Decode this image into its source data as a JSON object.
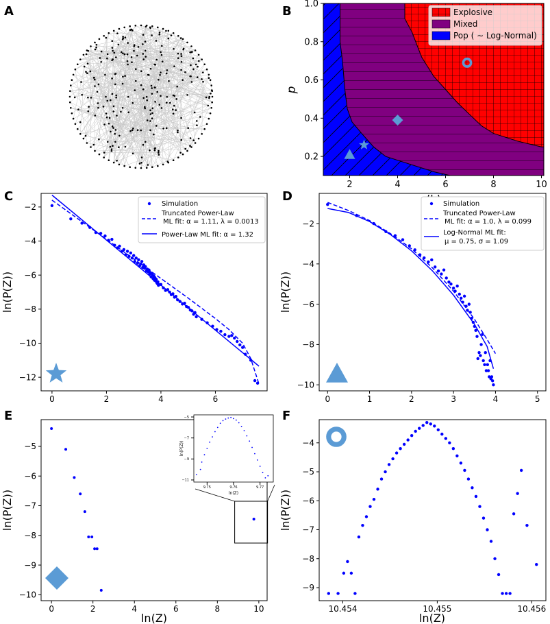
{
  "figure": {
    "panel_letters": [
      "A",
      "B",
      "C",
      "D",
      "E",
      "F"
    ]
  },
  "chart_data": [
    {
      "panel": "A",
      "type": "network",
      "title": "",
      "description_nodes": "random graph drawn in circular layout"
    },
    {
      "panel": "B",
      "type": "phase_diagram",
      "xlabel": "⟨k⟩",
      "ylabel": "p",
      "xlim": [
        0.9,
        10.1
      ],
      "ylim": [
        0.1,
        1.0
      ],
      "xticks": [
        2,
        4,
        6,
        8,
        10
      ],
      "yticks": [
        0.2,
        0.4,
        0.6,
        0.8,
        1.0
      ],
      "legend": [
        "Explosive",
        "Mixed",
        "Pop ( ∼  Log-Normal)"
      ],
      "colors": {
        "explosive": "#ff0000",
        "mixed": "#800080",
        "pop": "#0000ff"
      },
      "boundary_explosive_mixed": [
        [
          4.3,
          1.0
        ],
        [
          4.3,
          0.92
        ],
        [
          4.6,
          0.85
        ],
        [
          5.0,
          0.72
        ],
        [
          5.5,
          0.62
        ],
        [
          6.0,
          0.55
        ],
        [
          6.5,
          0.48
        ],
        [
          7.0,
          0.42
        ],
        [
          7.5,
          0.36
        ],
        [
          8.0,
          0.32
        ],
        [
          9.0,
          0.28
        ],
        [
          10.0,
          0.25
        ]
      ],
      "boundary_mixed_pop": [
        [
          1.6,
          0.8
        ],
        [
          1.7,
          0.7
        ],
        [
          1.8,
          0.55
        ],
        [
          1.9,
          0.45
        ],
        [
          2.1,
          0.38
        ],
        [
          2.5,
          0.32
        ],
        [
          3.0,
          0.25
        ],
        [
          3.5,
          0.2
        ],
        [
          4.5,
          0.16
        ],
        [
          5.5,
          0.12
        ],
        [
          6.2,
          0.1
        ]
      ],
      "markers": [
        {
          "shape": "ring",
          "k": 6.9,
          "p": 0.69
        },
        {
          "shape": "diamond",
          "k": 4.0,
          "p": 0.39
        },
        {
          "shape": "star",
          "k": 2.6,
          "p": 0.26
        },
        {
          "shape": "triangle",
          "k": 2.0,
          "p": 0.21
        }
      ]
    },
    {
      "panel": "C",
      "type": "scatter",
      "xlabel": "",
      "ylabel": "ln(P(Z))",
      "xlim": [
        -0.4,
        7.9
      ],
      "ylim": [
        -12.8,
        -1.2
      ],
      "xticks": [
        0,
        2,
        4,
        6
      ],
      "yticks": [
        -12,
        -10,
        -8,
        -6,
        -4,
        -2
      ],
      "legend": [
        "Simulation",
        "Truncated Power-Law",
        "ML fit: α = 1.11, λ = 0.0013",
        "Power-Law ML fit: α = 1.32"
      ],
      "marker": "star",
      "simulation": {
        "x": [
          0.0,
          0.69,
          1.1,
          1.39,
          1.61,
          1.79,
          1.95,
          2.08,
          2.2,
          2.3,
          2.4,
          2.48,
          2.56,
          2.64,
          2.71,
          2.77,
          2.83,
          2.89,
          2.94,
          3.0,
          3.04,
          3.09,
          3.14,
          3.18,
          3.22,
          3.26,
          3.3,
          3.33,
          3.37,
          3.4,
          3.43,
          3.47,
          3.5,
          3.53,
          3.56,
          3.58,
          3.61,
          3.64,
          3.66,
          3.69,
          3.71,
          3.74,
          3.76,
          3.78,
          3.81,
          3.83,
          3.85,
          3.87,
          3.89,
          3.91,
          4.0,
          4.09,
          4.17,
          4.25,
          4.32,
          4.38,
          4.44,
          4.5,
          4.55,
          4.61,
          4.7,
          4.79,
          4.87,
          4.94,
          5.01,
          5.08,
          5.14,
          5.2,
          5.25,
          5.3,
          5.5,
          5.7,
          5.9,
          6.05,
          6.2,
          6.35,
          6.5,
          6.6,
          6.7,
          6.8,
          6.9,
          7.0,
          7.1,
          7.3,
          7.45,
          7.55
        ],
        "y": [
          -1.92,
          -2.7,
          -2.95,
          -3.2,
          -3.5,
          -3.55,
          -3.7,
          -3.95,
          -3.9,
          -4.25,
          -4.4,
          -4.3,
          -4.6,
          -4.5,
          -4.8,
          -4.6,
          -4.9,
          -4.7,
          -5.0,
          -4.85,
          -5.2,
          -5.0,
          -5.3,
          -5.1,
          -5.45,
          -5.35,
          -5.2,
          -5.55,
          -5.4,
          -5.6,
          -5.5,
          -5.75,
          -5.65,
          -5.8,
          -5.7,
          -5.95,
          -5.85,
          -6.1,
          -5.9,
          -6.0,
          -6.2,
          -6.05,
          -6.3,
          -6.15,
          -6.35,
          -6.25,
          -6.45,
          -6.5,
          -6.4,
          -6.6,
          -6.55,
          -6.75,
          -6.9,
          -6.85,
          -7.0,
          -7.15,
          -7.1,
          -7.3,
          -7.25,
          -7.45,
          -7.55,
          -7.7,
          -7.65,
          -7.85,
          -7.9,
          -8.05,
          -8.1,
          -8.3,
          -8.2,
          -8.45,
          -8.6,
          -8.8,
          -9.0,
          -9.2,
          -9.3,
          -9.5,
          -9.6,
          -9.55,
          -9.7,
          -9.9,
          -10.1,
          -10.25,
          -10.65,
          -11.0,
          -12.2,
          -12.35
        ]
      },
      "truncated_power_law": {
        "x": [
          0.0,
          1.0,
          2.0,
          3.0,
          4.0,
          5.0,
          6.0,
          6.5,
          7.0,
          7.3,
          7.6
        ],
        "y": [
          -1.6,
          -2.75,
          -3.9,
          -5.05,
          -6.2,
          -7.35,
          -8.55,
          -9.2,
          -10.0,
          -10.9,
          -12.4
        ]
      },
      "power_law": {
        "x": [
          0.0,
          7.6
        ],
        "y": [
          -1.3,
          -11.35
        ]
      }
    },
    {
      "panel": "D",
      "type": "scatter",
      "xlabel": "",
      "ylabel": "ln(P(Z))",
      "xlim": [
        -0.2,
        5.2
      ],
      "ylim": [
        -10.3,
        -0.5
      ],
      "xticks": [
        0,
        1,
        2,
        3,
        4,
        5
      ],
      "yticks": [
        -10,
        -8,
        -6,
        -4,
        -2
      ],
      "legend": [
        "Simulation",
        "Truncated Power-Law",
        "ML fit: α = 1.0, λ = 0.099",
        "Log-Normal  ML fit:",
        "μ = 0.75, σ = 1.09"
      ],
      "marker": "triangle",
      "simulation": {
        "x": [
          0.0,
          0.69,
          1.1,
          1.39,
          1.61,
          1.79,
          1.95,
          2.08,
          2.2,
          2.3,
          2.4,
          2.48,
          2.56,
          2.64,
          2.71,
          2.77,
          2.83,
          2.89,
          2.94,
          3.0,
          3.04,
          3.09,
          3.14,
          3.18,
          3.22,
          3.26,
          3.3,
          3.33,
          3.37,
          3.4,
          3.43,
          3.47,
          3.5,
          3.53,
          3.56,
          3.58,
          3.61,
          3.64,
          3.66,
          3.69,
          3.71,
          3.74,
          3.76,
          3.78,
          3.81,
          3.83,
          3.85,
          3.87,
          3.89,
          3.91,
          3.93,
          3.95
        ],
        "y": [
          -1.05,
          -1.6,
          -2.0,
          -2.4,
          -2.6,
          -2.8,
          -3.1,
          -3.3,
          -3.55,
          -3.7,
          -3.9,
          -3.8,
          -4.15,
          -4.35,
          -4.5,
          -4.3,
          -4.7,
          -4.9,
          -5.0,
          -5.2,
          -5.35,
          -5.1,
          -5.5,
          -5.7,
          -5.9,
          -5.6,
          -6.1,
          -6.3,
          -6.0,
          -6.4,
          -6.7,
          -6.9,
          -7.1,
          -7.3,
          -7.6,
          -8.7,
          -8.4,
          -8.55,
          -8.0,
          -7.5,
          -8.8,
          -9.0,
          -8.4,
          -9.3,
          -9.0,
          -9.3,
          -9.6,
          -8.8,
          -9.7,
          -9.6,
          -9.8,
          -10.0
        ]
      },
      "truncated_power_law": {
        "x": [
          0.0,
          0.5,
          1.0,
          1.5,
          2.0,
          2.5,
          3.0,
          3.5,
          3.8,
          4.0
        ],
        "y": [
          -0.95,
          -1.35,
          -1.85,
          -2.5,
          -3.25,
          -4.2,
          -5.35,
          -6.75,
          -7.75,
          -8.45
        ]
      },
      "log_normal": {
        "x": [
          0.0,
          0.5,
          1.0,
          1.5,
          2.0,
          2.5,
          3.0,
          3.5,
          3.8,
          3.95
        ],
        "y": [
          -1.25,
          -1.45,
          -1.9,
          -2.55,
          -3.35,
          -4.35,
          -5.55,
          -7.0,
          -8.1,
          -9.2
        ]
      }
    },
    {
      "panel": "E",
      "type": "scatter",
      "xlabel": "ln(Z)",
      "ylabel": "ln(P(Z))",
      "xlim": [
        -0.5,
        10.4
      ],
      "ylim": [
        -10.2,
        -4.1
      ],
      "xticks": [
        0,
        2,
        4,
        6,
        8,
        10
      ],
      "yticks": [
        -10,
        -9,
        -8,
        -7,
        -6,
        -5
      ],
      "marker": "diamond",
      "simulation": {
        "x": [
          0.0,
          0.69,
          1.1,
          1.39,
          1.61,
          1.79,
          1.95,
          2.08,
          2.2,
          2.4,
          9.76
        ],
        "y": [
          -4.4,
          -5.1,
          -6.05,
          -6.6,
          -7.2,
          -8.05,
          -8.05,
          -8.45,
          -8.45,
          -9.85,
          -7.45
        ]
      },
      "inset": {
        "xlabel": "ln(Z)",
        "ylabel": "ln(P(Z))",
        "xlim": [
          9.745,
          9.775
        ],
        "ylim": [
          -11.2,
          -4.8
        ],
        "xticks": [
          9.75,
          9.76,
          9.77
        ],
        "yticks": [
          -11,
          -9,
          -7,
          -5
        ],
        "x": [
          9.746,
          9.7475,
          9.748,
          9.749,
          9.75,
          9.751,
          9.752,
          9.753,
          9.754,
          9.755,
          9.756,
          9.757,
          9.758,
          9.759,
          9.76,
          9.761,
          9.762,
          9.763,
          9.764,
          9.765,
          9.766,
          9.767,
          9.768,
          9.769,
          9.77,
          9.771,
          9.772,
          9.773
        ],
        "y": [
          -10.5,
          -10.0,
          -9.3,
          -8.6,
          -8.0,
          -7.4,
          -6.9,
          -6.4,
          -6.0,
          -5.6,
          -5.35,
          -5.2,
          -5.1,
          -5.05,
          -5.15,
          -5.3,
          -5.55,
          -5.9,
          -6.3,
          -6.8,
          -7.3,
          -7.9,
          -8.5,
          -9.1,
          -9.7,
          -10.3,
          -10.8,
          -10.6
        ]
      }
    },
    {
      "panel": "F",
      "type": "scatter",
      "xlabel": "ln(Z)",
      "ylabel": "ln(P(Z))",
      "xlim": [
        10.45375,
        10.45615
      ],
      "ylim": [
        -9.45,
        -3.2
      ],
      "xticks": [
        10.454,
        10.455,
        10.456
      ],
      "yticks": [
        -9,
        -8,
        -7,
        -6,
        -5,
        -4
      ],
      "marker": "ring",
      "simulation": {
        "x": [
          10.45385,
          10.45395,
          10.45401,
          10.45405,
          10.45409,
          10.45413,
          10.45417,
          10.45421,
          10.45425,
          10.45429,
          10.45433,
          10.45437,
          10.45441,
          10.45445,
          10.45449,
          10.45453,
          10.45457,
          10.45461,
          10.45465,
          10.45469,
          10.45473,
          10.45477,
          10.45481,
          10.45485,
          10.45489,
          10.45493,
          10.45497,
          10.45501,
          10.45505,
          10.45509,
          10.45513,
          10.45517,
          10.45521,
          10.45525,
          10.45529,
          10.45533,
          10.45537,
          10.45541,
          10.45545,
          10.45549,
          10.45553,
          10.45557,
          10.45561,
          10.45565,
          10.45569,
          10.45573,
          10.45577,
          10.45581,
          10.45585,
          10.45589,
          10.45595,
          10.45605
        ],
        "y": [
          -9.2,
          -9.2,
          -8.5,
          -8.1,
          -8.5,
          -9.2,
          -7.25,
          -6.85,
          -6.55,
          -6.2,
          -5.95,
          -5.6,
          -5.25,
          -5.0,
          -4.75,
          -4.55,
          -4.35,
          -4.2,
          -4.05,
          -3.9,
          -3.75,
          -3.6,
          -3.5,
          -3.4,
          -3.3,
          -3.35,
          -3.42,
          -3.55,
          -3.7,
          -3.85,
          -4.0,
          -4.2,
          -4.45,
          -4.7,
          -4.95,
          -5.25,
          -5.55,
          -5.85,
          -6.2,
          -6.6,
          -7.0,
          -7.4,
          -8.0,
          -8.55,
          -9.2,
          -9.2,
          -9.2,
          -6.45,
          -5.75,
          -4.95,
          -6.85,
          -8.2
        ]
      }
    }
  ]
}
